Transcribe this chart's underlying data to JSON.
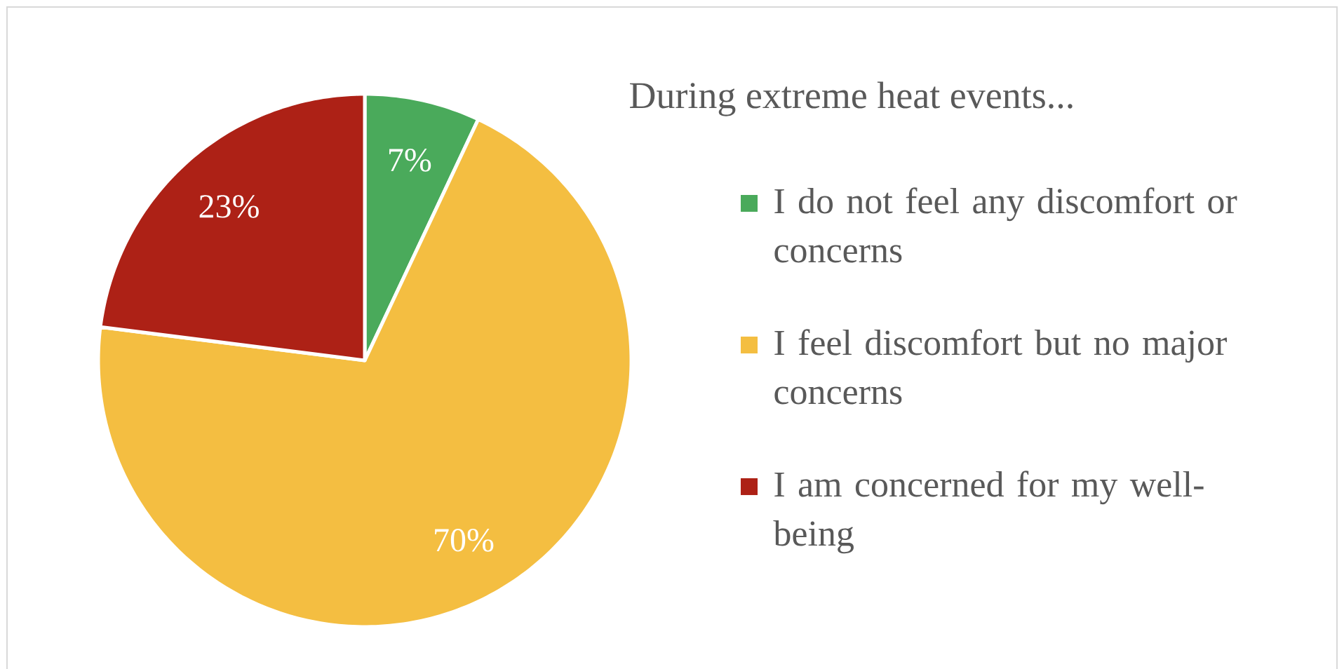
{
  "chart_data": {
    "type": "pie",
    "legend_title": "During extreme heat events...",
    "categories": [
      "I do not feel any discomfort or concerns",
      "I feel discomfort but no major concerns",
      "I am concerned for my well-being"
    ],
    "values": [
      7,
      70,
      23
    ],
    "colors": [
      "#4aaa5b",
      "#f4be41",
      "#ad2116"
    ],
    "value_labels": [
      "7%",
      "70%",
      "23%"
    ],
    "legend": "right"
  }
}
